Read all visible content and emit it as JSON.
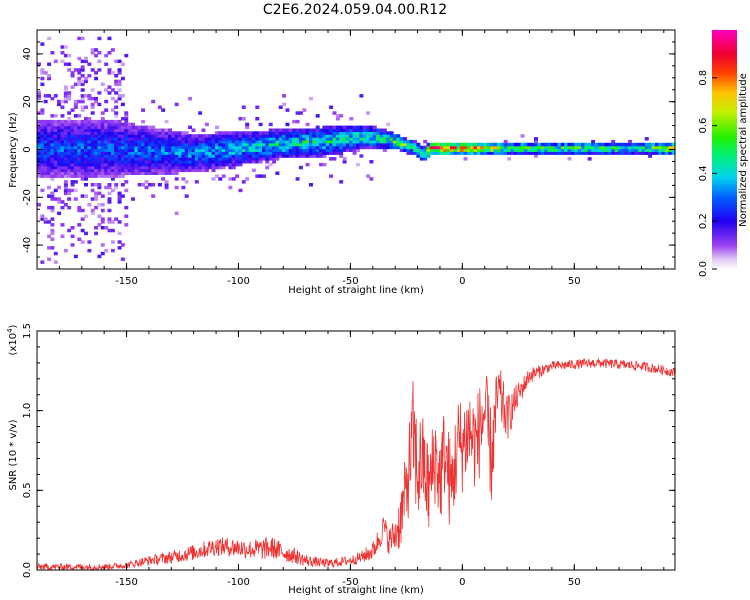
{
  "figure_title": "C2E6.2024.059.04.00.R12",
  "chart_data": [
    {
      "type": "heatmap",
      "title": "C2E6.2024.059.04.00.R12",
      "xlabel": "Height of straight line (km)",
      "ylabel": "Frequency (Hz)",
      "xlim": [
        -190,
        95
      ],
      "ylim": [
        -50,
        50
      ],
      "xticks": [
        -150,
        -100,
        -50,
        0,
        50
      ],
      "yticks": [
        -40,
        -20,
        0,
        20,
        40
      ],
      "colorbar": {
        "label": "Normalized spectral amplitude",
        "range": [
          0.0,
          1.0
        ],
        "ticks": [
          "0.0",
          "0.2",
          "0.4",
          "0.6",
          "0.8"
        ],
        "colormap": "rainbow (white-violet-blue-cyan-green-yellow-red-magenta)"
      },
      "ridge": {
        "x": [
          -190,
          -160,
          -140,
          -120,
          -100,
          -80,
          -60,
          -45,
          -35,
          -28,
          -22,
          -18,
          -15,
          -10,
          -5,
          0,
          10,
          20,
          40,
          60,
          80,
          95
        ],
        "freq_center": [
          0,
          0,
          -1,
          -2,
          0,
          2,
          3,
          5,
          4,
          2,
          0,
          -3,
          0,
          0,
          0,
          0,
          0,
          0,
          0,
          0,
          0,
          0
        ],
        "halfwidth": [
          12,
          12,
          10,
          8,
          7,
          6,
          6,
          5,
          4,
          3,
          3,
          3,
          2.5,
          2.5,
          2.5,
          2.5,
          2.5,
          2.5,
          2.5,
          2.5,
          2.5,
          2.5
        ],
        "peak_amplitude": [
          0.3,
          0.3,
          0.32,
          0.35,
          0.4,
          0.45,
          0.45,
          0.45,
          0.5,
          0.55,
          0.5,
          0.6,
          0.85,
          0.9,
          0.8,
          0.85,
          0.75,
          0.55,
          0.55,
          0.55,
          0.5,
          0.75
        ]
      }
    },
    {
      "type": "line",
      "xlabel": "Height of straight line (km)",
      "ylabel": "SNR (10 * v/v)",
      "y_multiplier": "(x10^4)",
      "xlim": [
        -190,
        95
      ],
      "ylim": [
        0,
        1.5
      ],
      "xticks": [
        -150,
        -100,
        -50,
        0,
        50
      ],
      "yticks": [
        "0.0",
        "0.5",
        "1.0",
        "1.5"
      ],
      "series": [
        {
          "color": "#ee3333",
          "x": [
            -190,
            -160,
            -150,
            -140,
            -130,
            -120,
            -110,
            -100,
            -95,
            -90,
            -85,
            -80,
            -75,
            -70,
            -65,
            -60,
            -55,
            -50,
            -45,
            -40,
            -37,
            -35,
            -33,
            -30,
            -28,
            -25,
            -22,
            -20,
            -18,
            -15,
            -12,
            -10,
            -8,
            -5,
            -2,
            0,
            3,
            6,
            10,
            13,
            16,
            20,
            25,
            30,
            40,
            60,
            80,
            95
          ],
          "y": [
            0.02,
            0.02,
            0.03,
            0.06,
            0.08,
            0.11,
            0.15,
            0.14,
            0.13,
            0.13,
            0.14,
            0.11,
            0.09,
            0.06,
            0.05,
            0.04,
            0.05,
            0.06,
            0.08,
            0.12,
            0.2,
            0.28,
            0.18,
            0.22,
            0.3,
            0.5,
            0.85,
            0.6,
            0.7,
            0.5,
            0.72,
            0.55,
            0.75,
            0.5,
            0.8,
            0.78,
            0.88,
            0.78,
            1.0,
            0.7,
            1.12,
            0.95,
            1.1,
            1.22,
            1.28,
            1.3,
            1.28,
            1.24
          ],
          "noise_amplitude": [
            0.02,
            0.02,
            0.02,
            0.03,
            0.04,
            0.05,
            0.06,
            0.06,
            0.06,
            0.07,
            0.07,
            0.06,
            0.05,
            0.04,
            0.03,
            0.03,
            0.03,
            0.03,
            0.04,
            0.06,
            0.08,
            0.08,
            0.08,
            0.12,
            0.18,
            0.25,
            0.35,
            0.35,
            0.3,
            0.3,
            0.3,
            0.3,
            0.3,
            0.3,
            0.3,
            0.3,
            0.3,
            0.3,
            0.3,
            0.3,
            0.2,
            0.15,
            0.08,
            0.05,
            0.03,
            0.03,
            0.03,
            0.03
          ]
        }
      ]
    }
  ]
}
